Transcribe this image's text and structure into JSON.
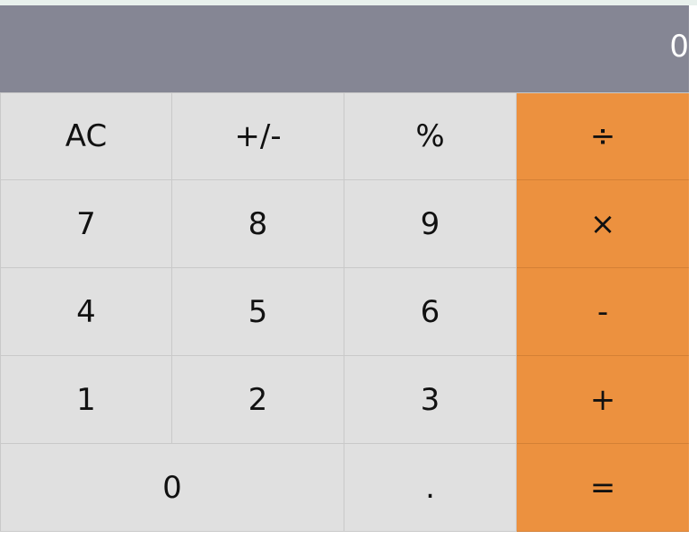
{
  "display": {
    "value": "0"
  },
  "keys": {
    "ac": "AC",
    "plus_minus": "+/-",
    "percent": "%",
    "divide": "÷",
    "seven": "7",
    "eight": "8",
    "nine": "9",
    "multiply": "×",
    "four": "4",
    "five": "5",
    "six": "6",
    "subtract": "-",
    "one": "1",
    "two": "2",
    "three": "3",
    "add": "+",
    "zero": "0",
    "decimal": ".",
    "equals": "="
  },
  "colors": {
    "display_background": "#858694",
    "key_background": "#e0e0e0",
    "operator_background": "#ec913f",
    "display_text": "#ffffff"
  }
}
